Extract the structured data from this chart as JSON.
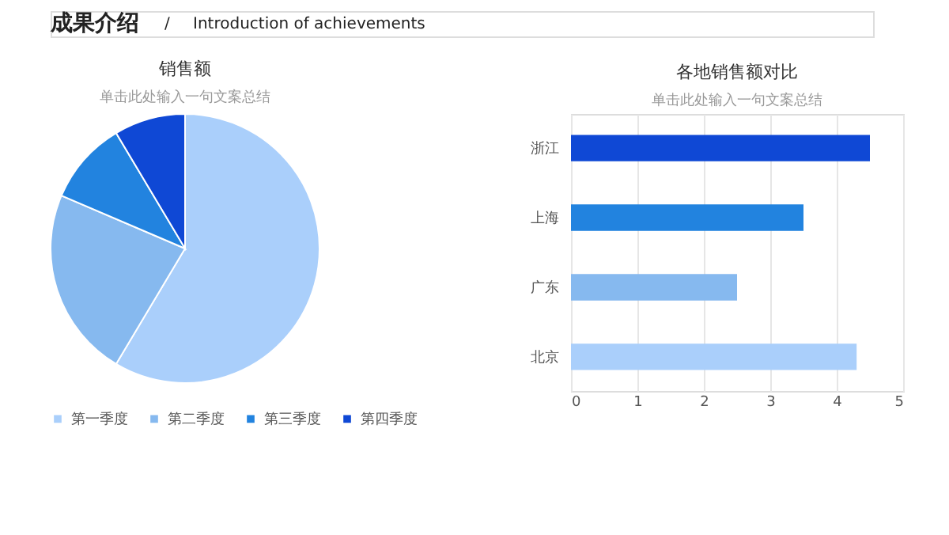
{
  "chart_data": [
    {
      "type": "pie",
      "title": "销售额",
      "subtitle": "单击此处输入一句文案总结",
      "annotations": [
        "成果介绍",
        "/",
        "Introduction of achievements"
      ],
      "categories": [
        "第一季度",
        "第二季度",
        "第三季度",
        "第四季度"
      ],
      "values": [
        58.57,
        22.86,
        10.0,
        8.57
      ],
      "colors": [
        "#aacffb",
        "#86b9ef",
        "#2283df",
        "#0f48d5"
      ],
      "legend": "bottom"
    },
    {
      "type": "bar",
      "title": "各地销售额对比",
      "subtitle": "单击此处输入一句文案总结",
      "orientation": "horizontal",
      "categories": [
        "浙江",
        "上海",
        "广东",
        "北京"
      ],
      "values": [
        4.5,
        3.5,
        2.5,
        4.3
      ],
      "colors": [
        "#0f48d5",
        "#2283df",
        "#86b9ef",
        "#aacffb"
      ],
      "xlim": [
        0,
        5
      ],
      "xticks": [
        0,
        1,
        2,
        3,
        4,
        5
      ],
      "grid": "x"
    }
  ]
}
